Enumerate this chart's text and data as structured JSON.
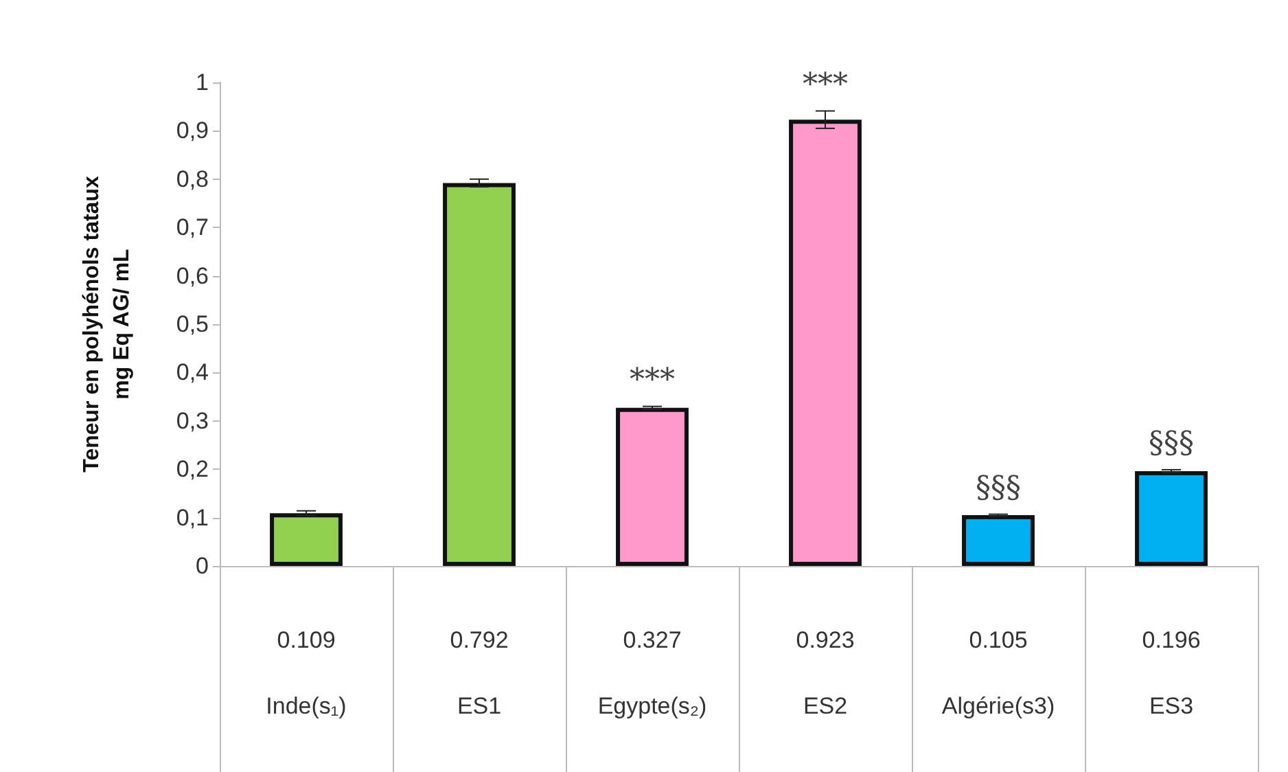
{
  "chart_data": {
    "type": "bar",
    "ylabel": "Teneur en polyhénols tataux\nmg Eq AG/ mL",
    "categories": [
      "Inde(s₁)",
      "ES1",
      "Egypte(s₂)",
      "ES2",
      "Algérie(s3)",
      "ES3"
    ],
    "values": [
      0.109,
      0.792,
      0.327,
      0.923,
      0.105,
      0.196
    ],
    "colors": [
      "#92d050",
      "#92d050",
      "#ff99cc",
      "#ff99cc",
      "#00b0f0",
      "#00b0f0"
    ],
    "errors": [
      0.005,
      0.008,
      0.003,
      0.018,
      0.002,
      0.003
    ],
    "data_labels": true,
    "ylim": [
      0,
      1
    ],
    "yticks": [
      {
        "value": 0,
        "label": "0"
      },
      {
        "value": 0.1,
        "label": "0,1"
      },
      {
        "value": 0.2,
        "label": "0,2"
      },
      {
        "value": 0.3,
        "label": "0,3"
      },
      {
        "value": 0.4,
        "label": "0,4"
      },
      {
        "value": 0.5,
        "label": "0,5"
      },
      {
        "value": 0.6,
        "label": "0,6"
      },
      {
        "value": 0.7,
        "label": "0,7"
      },
      {
        "value": 0.8,
        "label": "0,8"
      },
      {
        "value": 0.9,
        "label": "0,9"
      },
      {
        "value": 1,
        "label": "1"
      }
    ],
    "annotations": [
      {
        "text": "***",
        "x": "Egypte(s₂)",
        "y": 0.327
      },
      {
        "text": "***",
        "x": "ES2",
        "y": 0.923
      },
      {
        "text": "§§§",
        "x": "Algérie(s3)",
        "y": 0.105
      },
      {
        "text": "§§§",
        "x": "ES3",
        "y": 0.196
      }
    ]
  }
}
